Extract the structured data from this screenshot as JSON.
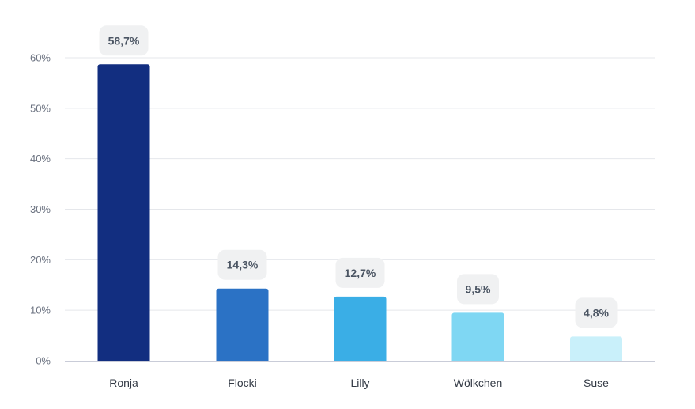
{
  "chart_data": {
    "type": "bar",
    "title": "",
    "xlabel": "",
    "ylabel": "",
    "categories": [
      "Ronja",
      "Flocki",
      "Lilly",
      "Wölkchen",
      "Suse"
    ],
    "values": [
      58.7,
      14.3,
      12.7,
      9.5,
      4.8
    ],
    "value_labels": [
      "58,7%",
      "14,3%",
      "12,7%",
      "9,5%",
      "4,8%"
    ],
    "bar_colors": [
      "#122e80",
      "#2b72c5",
      "#3aaee6",
      "#7fd7f3",
      "#c9f0fa"
    ],
    "ylim": [
      0,
      60
    ],
    "yticks": [
      0,
      10,
      20,
      30,
      40,
      50,
      60
    ],
    "ytick_labels": [
      "0%",
      "10%",
      "20%",
      "30%",
      "40%",
      "50%",
      "60%"
    ],
    "grid": true,
    "legend": "none",
    "colors": {
      "grid": "#e5e7eb",
      "axis": "#c9ccd8",
      "label_box": "#f0f1f2"
    }
  }
}
